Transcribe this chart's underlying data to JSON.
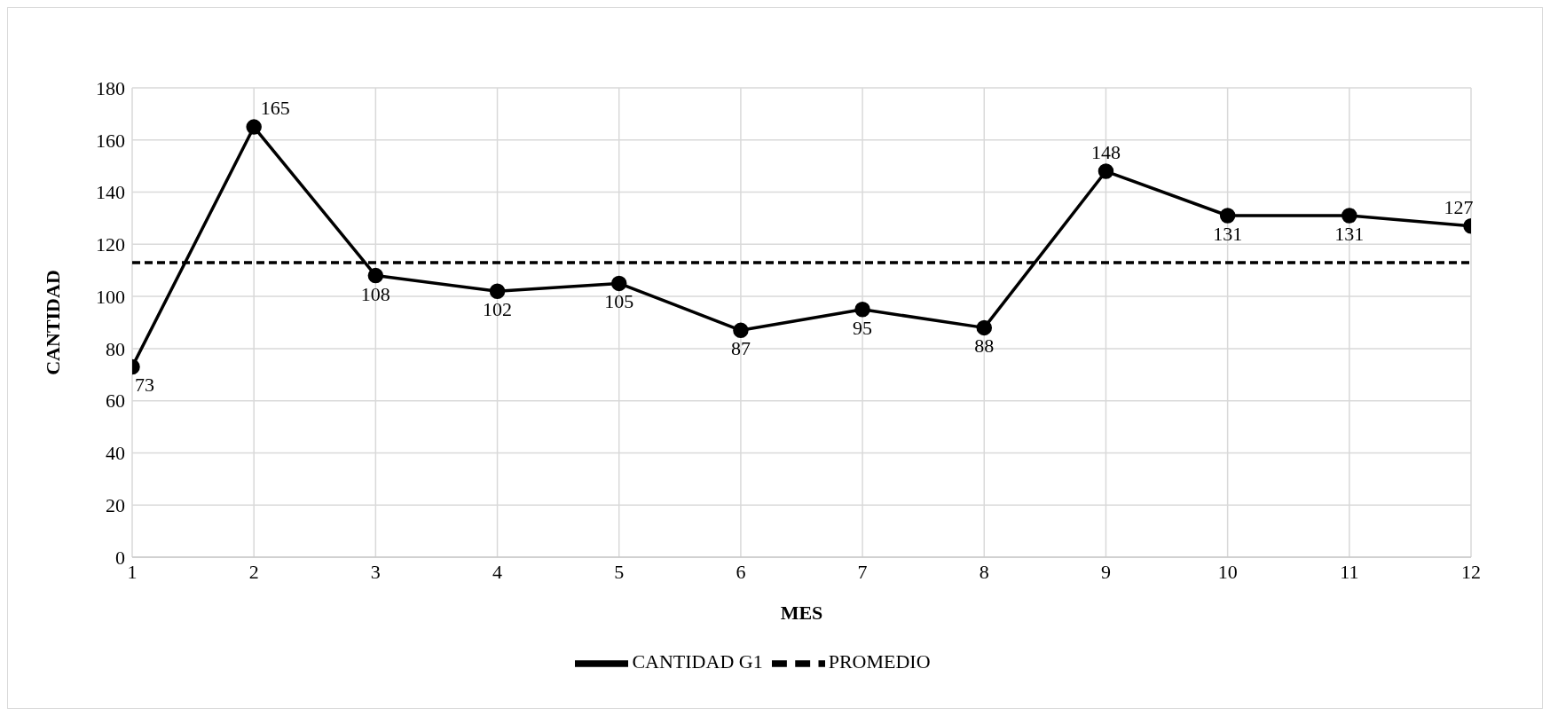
{
  "chart_data": {
    "type": "line",
    "xlabel": "MES",
    "ylabel": "CANTIDAD",
    "x": [
      1,
      2,
      3,
      4,
      5,
      6,
      7,
      8,
      9,
      10,
      11,
      12
    ],
    "series": [
      {
        "name": "CANTIDAD G1",
        "color": "#000000",
        "values": [
          73,
          165,
          108,
          102,
          105,
          87,
          95,
          88,
          148,
          131,
          131,
          127
        ],
        "marker": "circle",
        "line_style": "solid",
        "data_labels": true
      },
      {
        "name": "PROMEDIO",
        "color": "#000000",
        "values": [
          113,
          113,
          113,
          113,
          113,
          113,
          113,
          113,
          113,
          113,
          113,
          113
        ],
        "marker": "none",
        "line_style": "dashed"
      }
    ],
    "xlim": [
      1,
      12
    ],
    "xticks": [
      1,
      2,
      3,
      4,
      5,
      6,
      7,
      8,
      9,
      10,
      11,
      12
    ],
    "ylim": [
      0,
      180
    ],
    "yticks": [
      0,
      20,
      40,
      60,
      80,
      100,
      120,
      140,
      160,
      180
    ],
    "grid": true,
    "legend": "bottom"
  }
}
